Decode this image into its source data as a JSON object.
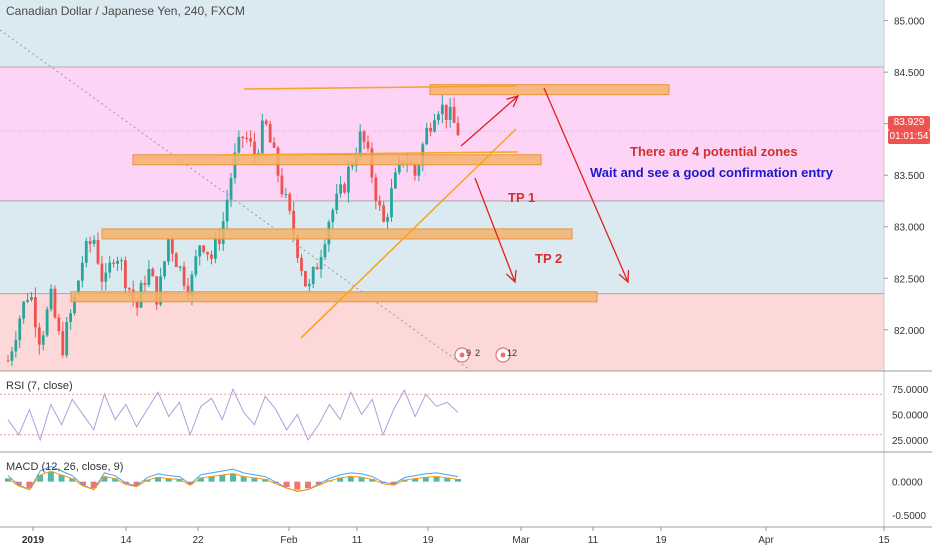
{
  "header": {
    "title": "Canadian Dollar / Japanese Yen, 240, FXCM"
  },
  "annotations": {
    "zones": "There are 4 potential zones",
    "confirm": "Wait and see a good confirmation entry",
    "tp1": "TP 1",
    "tp2": "TP 2"
  },
  "price_tags": {
    "last": "83.929",
    "countdown": "01:01:54"
  },
  "event_markers": [
    "9",
    "2",
    "12"
  ],
  "indicators": {
    "rsi_label": "RSI (7, close)",
    "macd_label": "MACD (12, 26, close, 9)"
  },
  "colors": {
    "bull": "#26a69a",
    "bear": "#ef5350",
    "zone_top": "#dbe9f1",
    "zone_pink": "#fdd4f6",
    "zone_mid": "#dbe9f1",
    "zone_bottom": "#fdd8d9",
    "sr_band": "#f5b36b",
    "trend": "#f5a623",
    "arrow": "#e02020",
    "text_red": "#d32f2f",
    "text_blue": "#1a1acc"
  },
  "chart_data": [
    {
      "type": "candlestick",
      "pane": "main",
      "title": "Canadian Dollar / Japanese Yen, 240, FXCM",
      "xlabel": "",
      "ylabel": "",
      "ylim": [
        81.6,
        85.2
      ],
      "yticks": [
        "85.000",
        "84.500",
        "84.000",
        "83.500",
        "83.000",
        "82.500",
        "82.000"
      ],
      "xticks": [
        "2019",
        "14",
        "22",
        "Feb",
        "11",
        "19",
        "Mar",
        "11",
        "19",
        "Apr",
        "15"
      ],
      "close_path": [
        81.7,
        82.1,
        82.4,
        81.9,
        82.3,
        81.8,
        82.2,
        82.7,
        82.9,
        82.4,
        82.8,
        82.5,
        82.2,
        82.6,
        82.3,
        82.9,
        82.6,
        82.4,
        82.9,
        82.7,
        83.0,
        83.6,
        83.9,
        83.7,
        84.0,
        83.6,
        83.2,
        82.8,
        82.35,
        82.7,
        83.1,
        83.3,
        83.6,
        83.9,
        83.5,
        83.0,
        83.4,
        83.7,
        83.5,
        83.9,
        84.2,
        84.1,
        83.93
      ],
      "current_price": 83.929,
      "zones": [
        {
          "from": 83.25,
          "to": 84.55,
          "color": "pink"
        },
        {
          "from": 82.35,
          "to": 83.25,
          "color": "blue"
        },
        {
          "from": 81.5,
          "to": 82.35,
          "color": "red"
        }
      ],
      "sr_levels": [
        84.33,
        83.65,
        82.93,
        82.32
      ]
    },
    {
      "type": "line",
      "pane": "rsi",
      "title": "RSI (7, close)",
      "ylim": [
        15,
        90
      ],
      "yticks": [
        "75.0000",
        "50.0000",
        "25.0000"
      ],
      "bands": [
        70,
        30
      ],
      "values": [
        45,
        30,
        55,
        25,
        60,
        40,
        65,
        50,
        35,
        70,
        45,
        60,
        38,
        55,
        72,
        48,
        62,
        30,
        58,
        66,
        45,
        75,
        52,
        40,
        68,
        55,
        35,
        50,
        25,
        40,
        60,
        45,
        72,
        50,
        65,
        30,
        55,
        74,
        48,
        70,
        58,
        62,
        52
      ]
    },
    {
      "type": "bar",
      "pane": "macd",
      "title": "MACD (12, 26, close, 9)",
      "ylim": [
        -0.65,
        0.4
      ],
      "yticks": [
        "0.0000",
        "-0.5000"
      ],
      "histogram": [
        0.05,
        -0.05,
        -0.1,
        0.1,
        0.15,
        0.1,
        0.05,
        -0.05,
        -0.1,
        0.08,
        0.05,
        -0.03,
        -0.06,
        0.03,
        0.07,
        0.05,
        0.04,
        -0.04,
        0.06,
        0.08,
        0.1,
        0.12,
        0.08,
        0.06,
        0.04,
        -0.02,
        -0.08,
        -0.12,
        -0.1,
        -0.04,
        0.02,
        0.06,
        0.08,
        0.07,
        0.04,
        -0.02,
        -0.04,
        0.03,
        0.05,
        0.07,
        0.08,
        0.06,
        0.04
      ]
    }
  ]
}
